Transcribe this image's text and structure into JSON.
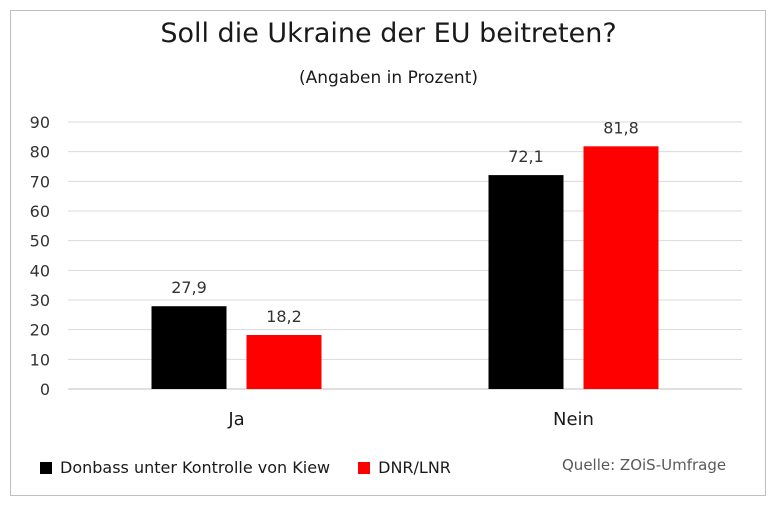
{
  "chart_data": {
    "type": "bar",
    "title": "Soll die Ukraine der EU beitreten?",
    "subtitle": "(Angaben  in Prozent)",
    "categories": [
      "Ja",
      "Nein"
    ],
    "series": [
      {
        "name": "Donbass unter Kontrolle von Kiew",
        "color": "#000000",
        "values": [
          27.9,
          72.1
        ],
        "labels": [
          "27,9",
          "72,1"
        ]
      },
      {
        "name": "DNR/LNR",
        "color": "#ff0000",
        "values": [
          18.2,
          81.8
        ],
        "labels": [
          "18,2",
          "81,8"
        ]
      }
    ],
    "ylim": [
      0,
      90
    ],
    "yticks": [
      0,
      10,
      20,
      30,
      40,
      50,
      60,
      70,
      80,
      90
    ],
    "grid": true,
    "legend_position": "bottom-left"
  },
  "source": "Quelle: ZOiS-Umfrage"
}
